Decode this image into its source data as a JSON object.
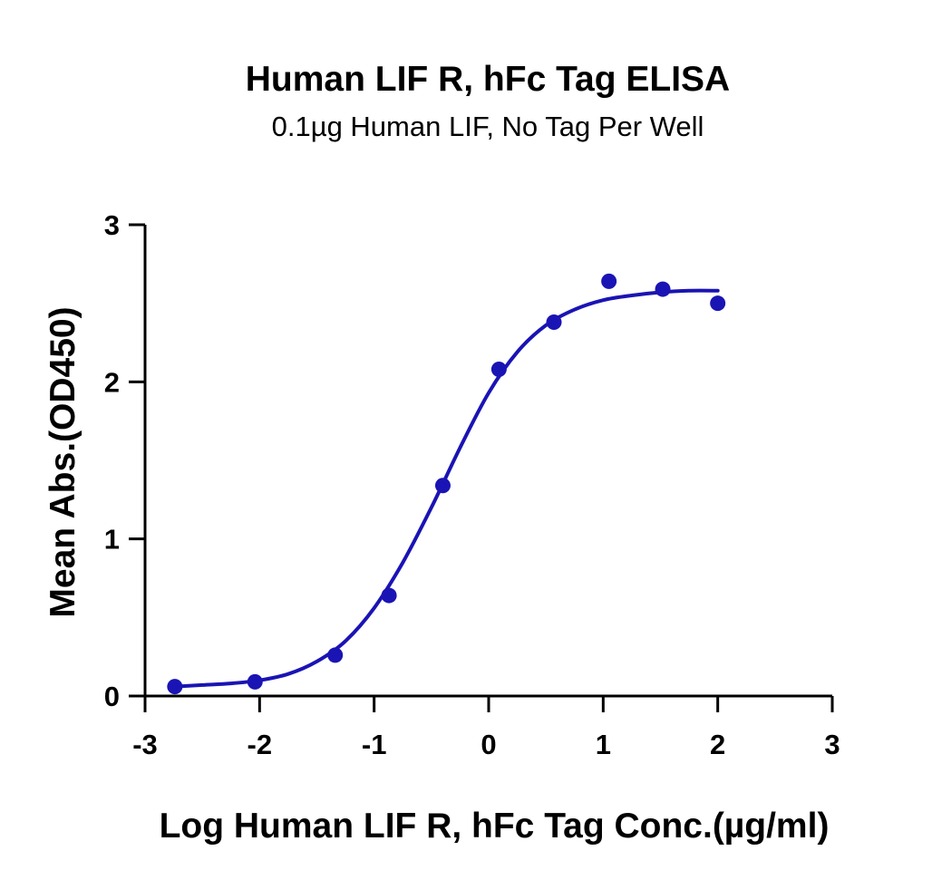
{
  "chart_data": {
    "type": "scatter",
    "title": "Human LIF R, hFc Tag ELISA",
    "subtitle": "0.1µg Human LIF, No Tag Per Well",
    "xlabel": "Log Human LIF R, hFc Tag Conc.(µg/ml)",
    "ylabel": "Mean Abs.(OD450)",
    "xlim": [
      -3,
      3
    ],
    "ylim": [
      0,
      3
    ],
    "xticks": [
      -3,
      -2,
      -1,
      0,
      1,
      2,
      3
    ],
    "yticks": [
      0,
      1,
      2,
      3
    ],
    "xtick_labels": [
      "-3",
      "-2",
      "-1",
      "0",
      "1",
      "2",
      "3"
    ],
    "ytick_labels": [
      "0",
      "1",
      "2",
      "3"
    ],
    "grid": false,
    "color": "#1a14b4",
    "series": [
      {
        "kind": "points",
        "x": [
          -2.74,
          -2.04,
          -1.34,
          -0.87,
          -0.4,
          0.09,
          0.57,
          1.05,
          1.52,
          2.0
        ],
        "y": [
          0.06,
          0.09,
          0.26,
          0.64,
          1.34,
          2.08,
          2.38,
          2.64,
          2.59,
          2.5
        ]
      },
      {
        "kind": "fit_curve",
        "x": [
          -2.74,
          -2.5,
          -2.25,
          -2.0,
          -1.75,
          -1.5,
          -1.25,
          -1.0,
          -0.75,
          -0.5,
          -0.25,
          0.0,
          0.25,
          0.5,
          0.75,
          1.0,
          1.25,
          1.5,
          1.75,
          2.0
        ],
        "y": [
          0.06,
          0.07,
          0.08,
          0.1,
          0.14,
          0.22,
          0.35,
          0.56,
          0.85,
          1.2,
          1.58,
          1.93,
          2.19,
          2.36,
          2.46,
          2.52,
          2.55,
          2.57,
          2.58,
          2.58
        ]
      }
    ]
  }
}
